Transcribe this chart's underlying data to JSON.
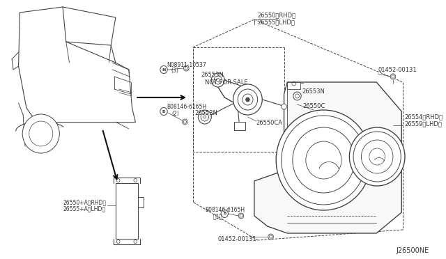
{
  "bg_color": "#ffffff",
  "line_color": "#444444",
  "text_color": "#333333",
  "diagram_code": "J26500NE",
  "labels": {
    "top_center": [
      "26550（RHD",
      "26555（LHD）"
    ],
    "top_right": "01452-00131",
    "nut_label": "N08911-10537",
    "nut_sub": "(3)",
    "bolt_label": "B08146-6165H",
    "bolt_sub": "(2)",
    "inner_tl": "26553N",
    "inner_nfs": "NOT FOR SALE",
    "inner_ml": "26553N",
    "inner_mr": "26553N",
    "inner_26550c": "26550C",
    "inner_26550ca": "26550CA",
    "right_rh": "26554(RHD)",
    "right_lh": "26559(LHD)",
    "left_mod_rh": "26550+A(RHD)",
    "left_mod_lh": "26555+A(LHD)",
    "bot_bolt_label": "B08146-6165H",
    "bot_bolt_sub": "(1)",
    "bot_screw_label": "01452-00131",
    "diagram_id": "J26500NE"
  }
}
